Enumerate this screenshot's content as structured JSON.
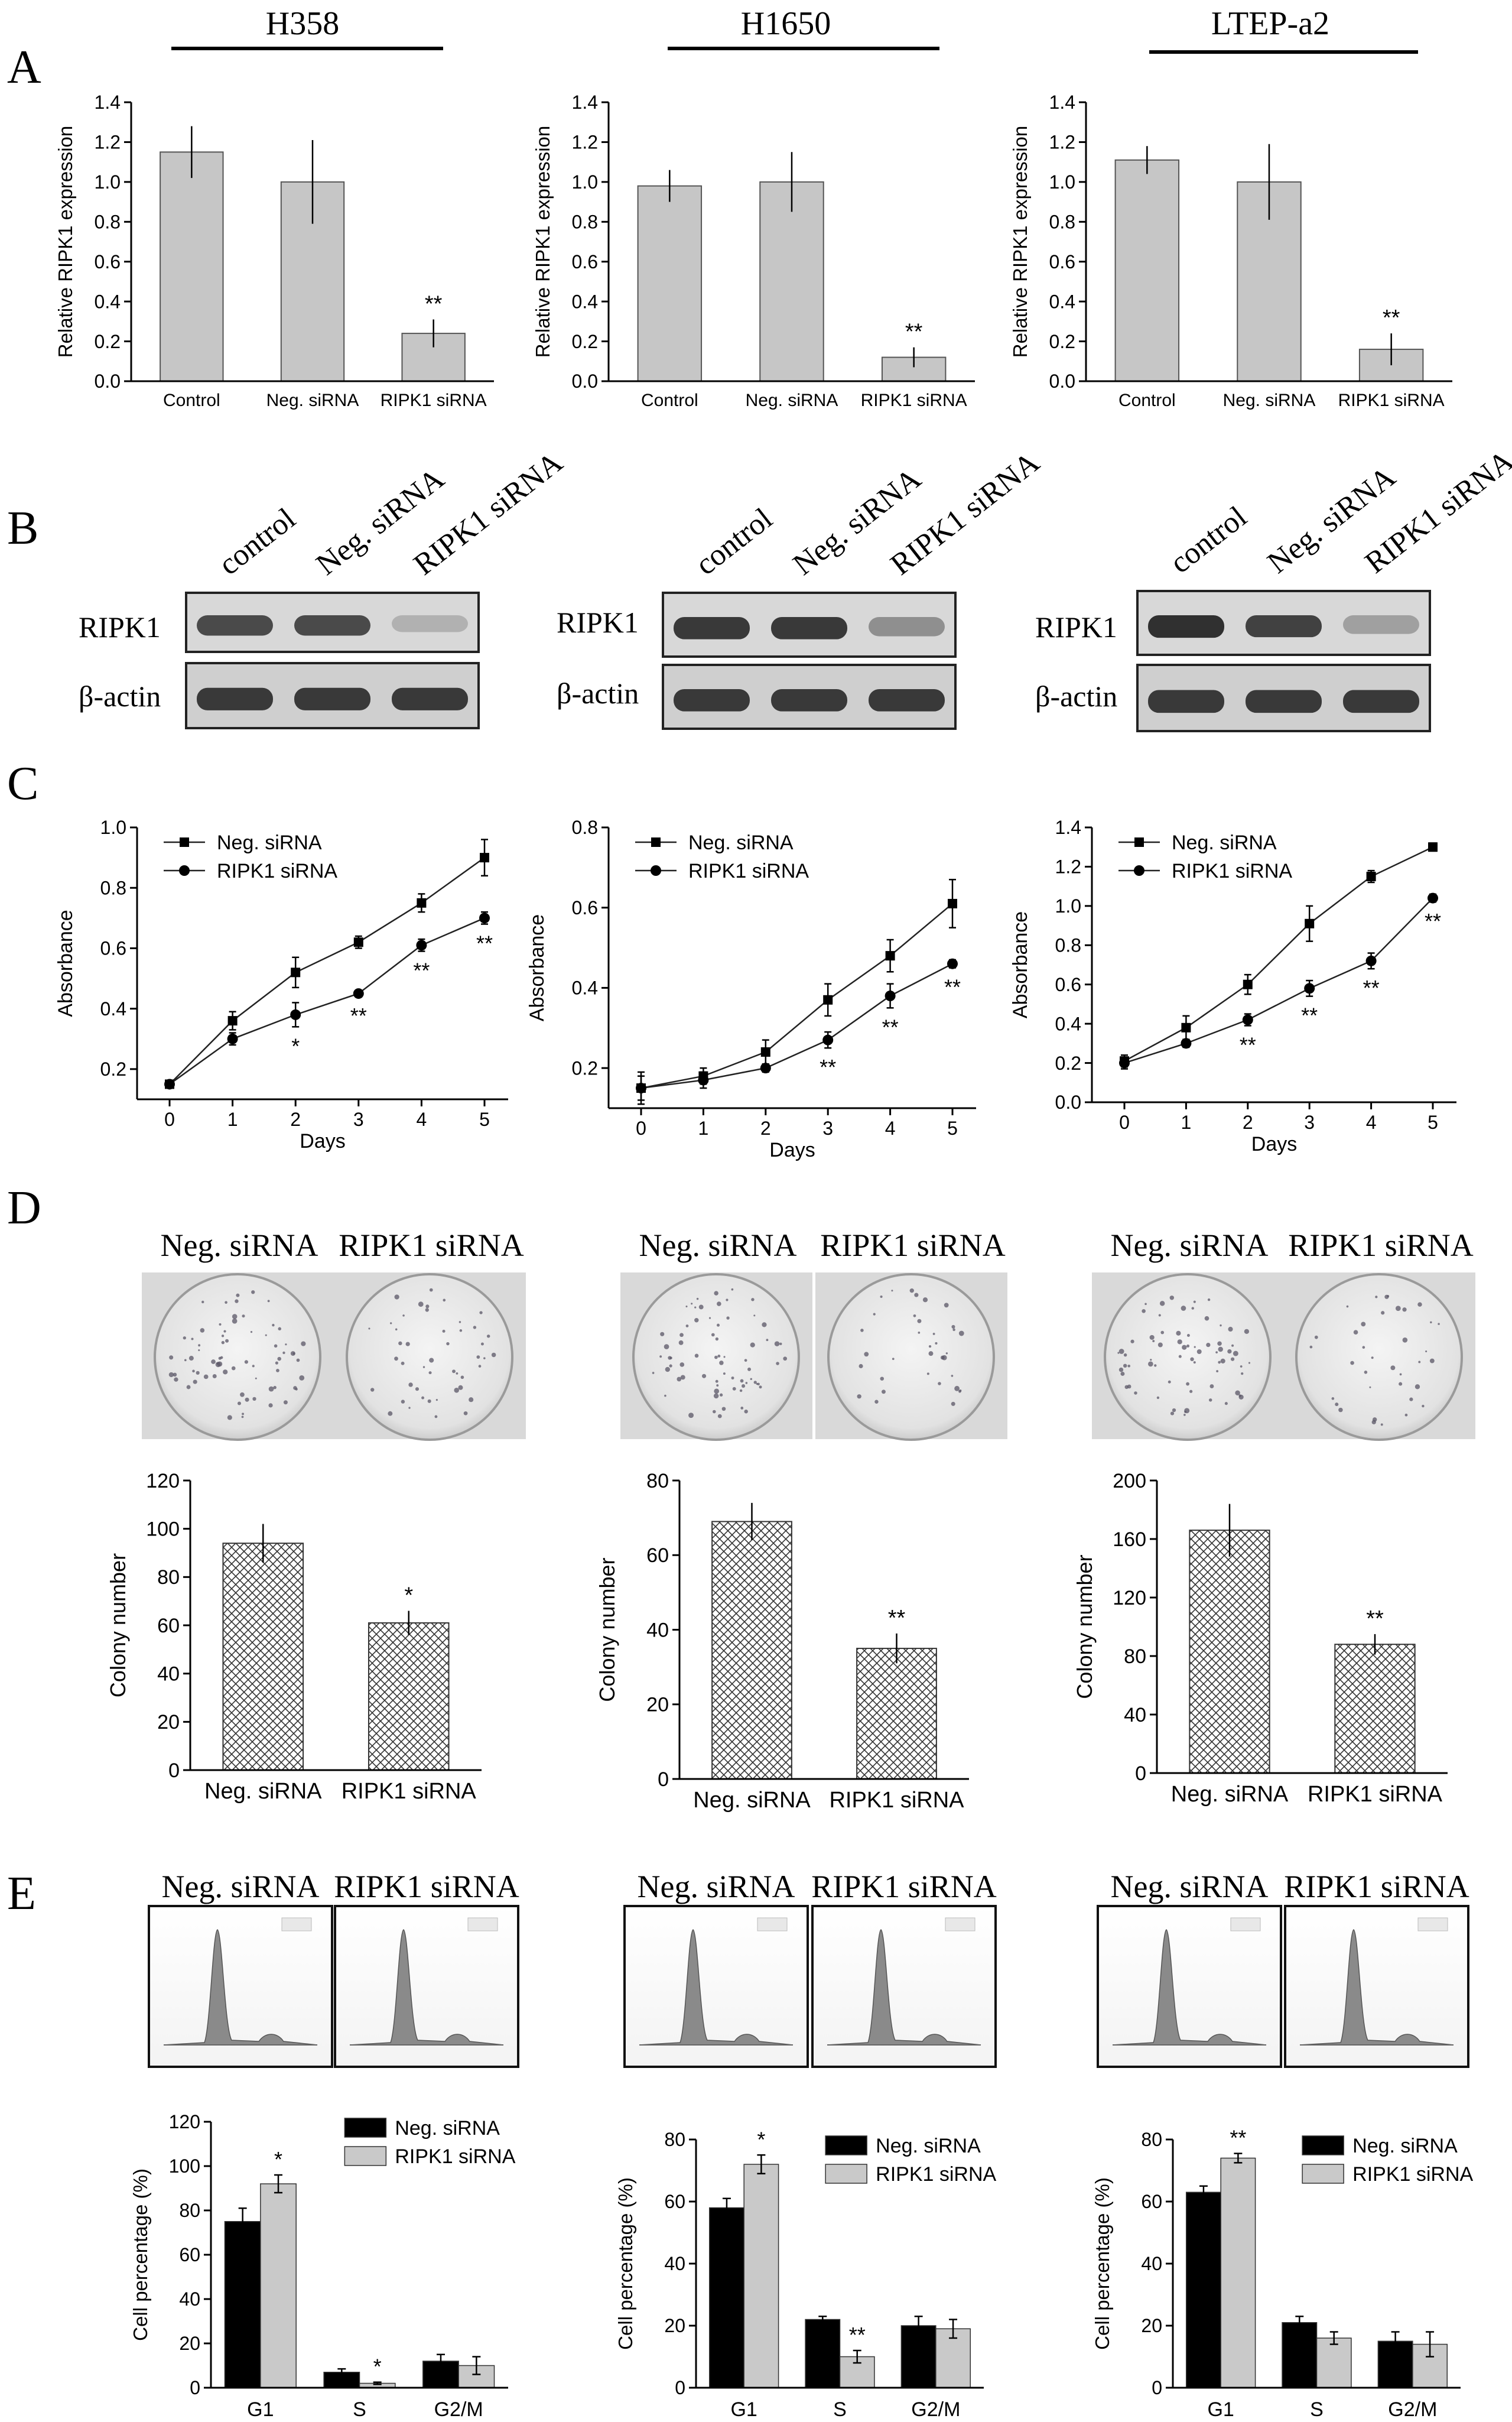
{
  "cell_lines": [
    "H358",
    "H1650",
    "LTEP-a2"
  ],
  "panel_letters": [
    "A",
    "B",
    "C",
    "D",
    "E"
  ],
  "blot": {
    "lanes": [
      "control",
      "Neg. siRNA",
      "RIPK1 siRNA"
    ],
    "rows": [
      "RIPK1",
      "β-actin"
    ],
    "ripk1_band_level": [
      [
        0.85,
        0.85,
        0.25
      ],
      [
        0.95,
        0.95,
        0.45
      ],
      [
        1.0,
        0.9,
        0.35
      ]
    ]
  },
  "dish_labels": [
    "Neg. siRNA",
    "RIPK1 siRNA"
  ],
  "colony_density": [
    [
      1.0,
      0.65
    ],
    [
      1.0,
      0.5
    ],
    [
      1.0,
      0.52
    ]
  ],
  "colors": {
    "bar_gray": "#c6c6c6",
    "black": "#000000",
    "light_gray": "#c9c9c9"
  },
  "chart_data": [
    {
      "id": "A1",
      "type": "bar",
      "panel": "A",
      "cell_line": "H358",
      "categories": [
        "Control",
        "Neg. siRNA",
        "RIPK1 siRNA"
      ],
      "values": [
        1.15,
        1.0,
        0.24
      ],
      "errors": [
        0.13,
        0.21,
        0.07
      ],
      "annotations": [
        "",
        "",
        "**"
      ],
      "ylabel": "Relative RIPK1 expression",
      "ylim": [
        0,
        1.4
      ],
      "yticks": [
        "0.0",
        "0.2",
        "0.4",
        "0.6",
        "0.8",
        "1.0",
        "1.2",
        "1.4"
      ]
    },
    {
      "id": "A2",
      "type": "bar",
      "panel": "A",
      "cell_line": "H1650",
      "categories": [
        "Control",
        "Neg. siRNA",
        "RIPK1 siRNA"
      ],
      "values": [
        0.98,
        1.0,
        0.12
      ],
      "errors": [
        0.08,
        0.15,
        0.05
      ],
      "annotations": [
        "",
        "",
        "**"
      ],
      "ylabel": "Relative RIPK1 expression",
      "ylim": [
        0,
        1.4
      ],
      "yticks": [
        "0.0",
        "0.2",
        "0.4",
        "0.6",
        "0.8",
        "1.0",
        "1.2",
        "1.4"
      ]
    },
    {
      "id": "A3",
      "type": "bar",
      "panel": "A",
      "cell_line": "LTEP-a2",
      "categories": [
        "Control",
        "Neg. siRNA",
        "RIPK1 siRNA"
      ],
      "values": [
        1.11,
        1.0,
        0.16
      ],
      "errors": [
        0.07,
        0.19,
        0.08
      ],
      "annotations": [
        "",
        "",
        "**"
      ],
      "ylabel": "Relative RIPK1 expression",
      "ylim": [
        0,
        1.4
      ],
      "yticks": [
        "0.0",
        "0.2",
        "0.4",
        "0.6",
        "0.8",
        "1.0",
        "1.2",
        "1.4"
      ]
    },
    {
      "id": "C1",
      "type": "line",
      "panel": "C",
      "cell_line": "H358",
      "x": [
        0,
        1,
        2,
        3,
        4,
        5
      ],
      "xlabel": "Days",
      "ylabel": "Absorbance",
      "ylim": [
        0.1,
        1.0
      ],
      "yticks": [
        "0.2",
        "0.4",
        "0.6",
        "0.8",
        "1.0"
      ],
      "ytick_values": [
        0.2,
        0.4,
        0.6,
        0.8,
        1.0
      ],
      "series": [
        {
          "name": "Neg. siRNA",
          "marker": "square",
          "values": [
            0.15,
            0.36,
            0.52,
            0.62,
            0.75,
            0.9
          ],
          "errors": [
            0.01,
            0.03,
            0.05,
            0.02,
            0.03,
            0.06
          ]
        },
        {
          "name": "RIPK1 siRNA",
          "marker": "circle",
          "values": [
            0.15,
            0.3,
            0.38,
            0.45,
            0.61,
            0.7
          ],
          "errors": [
            0.01,
            0.02,
            0.04,
            0.01,
            0.02,
            0.02
          ]
        }
      ],
      "annotations": [
        "",
        "",
        "*",
        "**",
        "**",
        "**"
      ],
      "legend": "top-left"
    },
    {
      "id": "C2",
      "type": "line",
      "panel": "C",
      "cell_line": "H1650",
      "x": [
        0,
        1,
        2,
        3,
        4,
        5
      ],
      "xlabel": "Days",
      "ylabel": "Absorbance",
      "ylim": [
        0.1,
        0.8
      ],
      "yticks": [
        "0.2",
        "0.4",
        "0.6",
        "0.8"
      ],
      "ytick_values": [
        0.2,
        0.4,
        0.6,
        0.8
      ],
      "series": [
        {
          "name": "Neg. siRNA",
          "marker": "square",
          "values": [
            0.15,
            0.18,
            0.24,
            0.37,
            0.48,
            0.61
          ],
          "errors": [
            0.04,
            0.02,
            0.03,
            0.04,
            0.04,
            0.06
          ]
        },
        {
          "name": "RIPK1 siRNA",
          "marker": "circle",
          "values": [
            0.15,
            0.17,
            0.2,
            0.27,
            0.38,
            0.46
          ],
          "errors": [
            0.03,
            0.02,
            0.01,
            0.02,
            0.03,
            0.01
          ]
        }
      ],
      "annotations": [
        "",
        "",
        "",
        "**",
        "**",
        "**"
      ],
      "legend": "top-left"
    },
    {
      "id": "C3",
      "type": "line",
      "panel": "C",
      "cell_line": "LTEP-a2",
      "x": [
        0,
        1,
        2,
        3,
        4,
        5
      ],
      "xlabel": "Days",
      "ylabel": "Absorbance",
      "ylim": [
        0.0,
        1.4
      ],
      "yticks": [
        "0.0",
        "0.2",
        "0.4",
        "0.6",
        "0.8",
        "1.0",
        "1.2",
        "1.4"
      ],
      "ytick_values": [
        0.0,
        0.2,
        0.4,
        0.6,
        0.8,
        1.0,
        1.2,
        1.4
      ],
      "series": [
        {
          "name": "Neg. siRNA",
          "marker": "square",
          "values": [
            0.21,
            0.38,
            0.6,
            0.91,
            1.15,
            1.3
          ],
          "errors": [
            0.03,
            0.06,
            0.05,
            0.09,
            0.03,
            0.02
          ]
        },
        {
          "name": "RIPK1 siRNA",
          "marker": "circle",
          "values": [
            0.2,
            0.3,
            0.42,
            0.58,
            0.72,
            1.04
          ],
          "errors": [
            0.03,
            0.02,
            0.03,
            0.04,
            0.04,
            0.02
          ]
        }
      ],
      "annotations": [
        "",
        "",
        "**",
        "**",
        "**",
        "**"
      ],
      "legend": "top-left"
    },
    {
      "id": "D1",
      "type": "bar",
      "panel": "D",
      "cell_line": "H358",
      "categories": [
        "Neg. siRNA",
        "RIPK1 siRNA"
      ],
      "values": [
        94,
        61
      ],
      "errors": [
        8,
        5
      ],
      "annotations": [
        "",
        "*"
      ],
      "ylabel": "Colony number",
      "ylim": [
        0,
        120
      ],
      "yticks": [
        "0",
        "20",
        "40",
        "60",
        "80",
        "100",
        "120"
      ],
      "ytick_values": [
        0,
        20,
        40,
        60,
        80,
        100,
        120
      ]
    },
    {
      "id": "D2",
      "type": "bar",
      "panel": "D",
      "cell_line": "H1650",
      "categories": [
        "Neg. siRNA",
        "RIPK1 siRNA"
      ],
      "values": [
        69,
        35
      ],
      "errors": [
        5,
        4
      ],
      "annotations": [
        "",
        "**"
      ],
      "ylabel": "Colony number",
      "ylim": [
        0,
        80
      ],
      "yticks": [
        "0",
        "20",
        "40",
        "60",
        "80"
      ],
      "ytick_values": [
        0,
        20,
        40,
        60,
        80
      ]
    },
    {
      "id": "D3",
      "type": "bar",
      "panel": "D",
      "cell_line": "LTEP-a2",
      "categories": [
        "Neg. siRNA",
        "RIPK1 siRNA"
      ],
      "values": [
        166,
        88
      ],
      "errors": [
        18,
        7
      ],
      "annotations": [
        "",
        "**"
      ],
      "ylabel": "Colony number",
      "ylim": [
        0,
        200
      ],
      "yticks": [
        "0",
        "40",
        "80",
        "120",
        "160",
        "200"
      ],
      "ytick_values": [
        0,
        40,
        80,
        120,
        160,
        200
      ]
    },
    {
      "id": "E1",
      "type": "bar",
      "panel": "E",
      "cell_line": "H358",
      "categories": [
        "G1",
        "S",
        "G2/M"
      ],
      "ylabel": "Cell percentage (%)",
      "ylim": [
        0,
        120
      ],
      "yticks": [
        "0",
        "20",
        "40",
        "60",
        "80",
        "100",
        "120"
      ],
      "ytick_values": [
        0,
        20,
        40,
        60,
        80,
        100,
        120
      ],
      "series": [
        {
          "name": "Neg. siRNA",
          "values": [
            75,
            7,
            12
          ],
          "errors": [
            6,
            1.5,
            3
          ]
        },
        {
          "name": "RIPK1 siRNA",
          "values": [
            92,
            2,
            10
          ],
          "errors": [
            4,
            0.5,
            4
          ]
        }
      ],
      "annotations": [
        "*",
        "*",
        ""
      ],
      "legend": "top-right"
    },
    {
      "id": "E2",
      "type": "bar",
      "panel": "E",
      "cell_line": "H1650",
      "categories": [
        "G1",
        "S",
        "G2/M"
      ],
      "ylabel": "Cell percentage (%)",
      "ylim": [
        0,
        80
      ],
      "yticks": [
        "0",
        "20",
        "40",
        "60",
        "80"
      ],
      "ytick_values": [
        0,
        20,
        40,
        60,
        80
      ],
      "series": [
        {
          "name": "Neg. siRNA",
          "values": [
            58,
            22,
            20
          ],
          "errors": [
            3,
            1,
            3
          ]
        },
        {
          "name": "RIPK1 siRNA",
          "values": [
            72,
            10,
            19
          ],
          "errors": [
            3,
            2,
            3
          ]
        }
      ],
      "annotations": [
        "*",
        "**",
        ""
      ],
      "legend": "top-right"
    },
    {
      "id": "E3",
      "type": "bar",
      "panel": "E",
      "cell_line": "LTEP-a2",
      "categories": [
        "G1",
        "S",
        "G2/M"
      ],
      "ylabel": "Cell percentage (%)",
      "ylim": [
        0,
        80
      ],
      "yticks": [
        "0",
        "20",
        "40",
        "60",
        "80"
      ],
      "ytick_values": [
        0,
        20,
        40,
        60,
        80
      ],
      "series": [
        {
          "name": "Neg. siRNA",
          "values": [
            63,
            21,
            15
          ],
          "errors": [
            2,
            2,
            3
          ]
        },
        {
          "name": "RIPK1 siRNA",
          "values": [
            74,
            16,
            14
          ],
          "errors": [
            1.5,
            2,
            4
          ]
        }
      ],
      "annotations": [
        "**",
        "",
        ""
      ],
      "legend": "top-right"
    }
  ]
}
